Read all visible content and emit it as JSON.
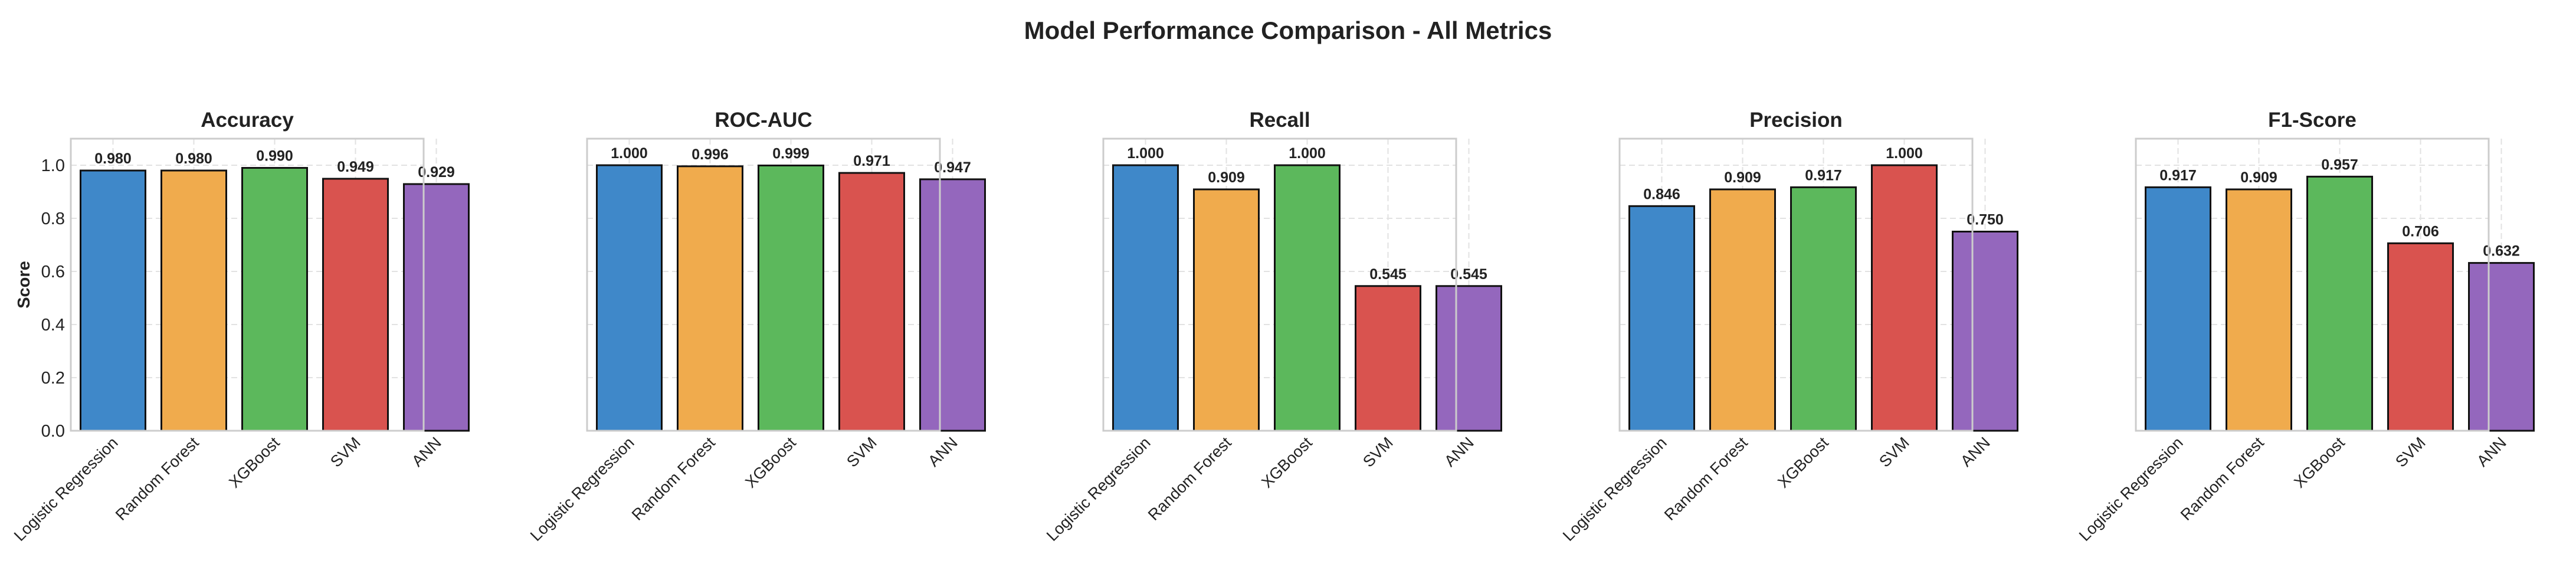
{
  "figure": {
    "title": "Model Performance Comparison - All Metrics"
  },
  "chart_data": [
    {
      "type": "bar",
      "title": "Accuracy",
      "ylabel": "Score",
      "categories": [
        "Logistic Regression",
        "Random Forest",
        "XGBoost",
        "SVM",
        "ANN"
      ],
      "values": [
        0.98,
        0.98,
        0.99,
        0.949,
        0.929
      ],
      "value_labels": [
        "0.980",
        "0.980",
        "0.990",
        "0.949",
        "0.929"
      ],
      "ylim": [
        0,
        1.1
      ],
      "yticks": [
        "0.0",
        "0.2",
        "0.4",
        "0.6",
        "0.8",
        "1.0"
      ],
      "grid": true
    },
    {
      "type": "bar",
      "title": "ROC-AUC",
      "ylabel": "",
      "categories": [
        "Logistic Regression",
        "Random Forest",
        "XGBoost",
        "SVM",
        "ANN"
      ],
      "values": [
        1.0,
        0.996,
        0.999,
        0.971,
        0.947
      ],
      "value_labels": [
        "1.000",
        "0.996",
        "0.999",
        "0.971",
        "0.947"
      ],
      "ylim": [
        0,
        1.1
      ],
      "yticks": [],
      "grid": true
    },
    {
      "type": "bar",
      "title": "Recall",
      "ylabel": "",
      "categories": [
        "Logistic Regression",
        "Random Forest",
        "XGBoost",
        "SVM",
        "ANN"
      ],
      "values": [
        1.0,
        0.909,
        1.0,
        0.545,
        0.545
      ],
      "value_labels": [
        "1.000",
        "0.909",
        "1.000",
        "0.545",
        "0.545"
      ],
      "ylim": [
        0,
        1.1
      ],
      "yticks": [],
      "grid": true
    },
    {
      "type": "bar",
      "title": "Precision",
      "ylabel": "",
      "categories": [
        "Logistic Regression",
        "Random Forest",
        "XGBoost",
        "SVM",
        "ANN"
      ],
      "values": [
        0.846,
        0.909,
        0.917,
        1.0,
        0.75
      ],
      "value_labels": [
        "0.846",
        "0.909",
        "0.917",
        "1.000",
        "0.750"
      ],
      "ylim": [
        0,
        1.1
      ],
      "yticks": [],
      "grid": true
    },
    {
      "type": "bar",
      "title": "F1-Score",
      "ylabel": "",
      "categories": [
        "Logistic Regression",
        "Random Forest",
        "XGBoost",
        "SVM",
        "ANN"
      ],
      "values": [
        0.917,
        0.909,
        0.957,
        0.706,
        0.632
      ],
      "value_labels": [
        "0.917",
        "0.909",
        "0.957",
        "0.706",
        "0.632"
      ],
      "ylim": [
        0,
        1.1
      ],
      "yticks": [],
      "grid": true
    }
  ],
  "colors": {
    "Logistic Regression": "#3f88c9",
    "Random Forest": "#f0ab4d",
    "XGBoost": "#5cb85c",
    "SVM": "#d9534f",
    "ANN": "#9467bd",
    "bar_edge": "#111111",
    "grid": "#e2e2e2",
    "axes_border": "#cccccc",
    "text": "#222222"
  }
}
